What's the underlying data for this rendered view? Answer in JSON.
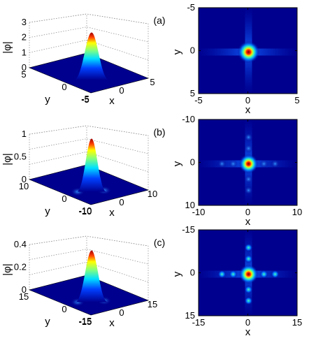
{
  "panels": [
    {
      "label": "(a)",
      "zlabel": "|φ|",
      "xlabel": "x",
      "ylabel": "y",
      "zticks": [
        "3",
        "2",
        "1",
        "0"
      ],
      "xticks3d": [
        "-5",
        "0",
        "5"
      ],
      "yticks3d": [
        "5",
        "0",
        "-5"
      ],
      "xticks": [
        "-5",
        "0",
        "5"
      ],
      "yticks": [
        "-5",
        "0",
        "5"
      ]
    },
    {
      "label": "(b)",
      "zlabel": "|φ|",
      "xlabel": "x",
      "ylabel": "y",
      "zticks": [
        "1",
        "0.5",
        "0"
      ],
      "xticks3d": [
        "-10",
        "0",
        "10"
      ],
      "yticks3d": [
        "10",
        "0",
        "-10"
      ],
      "xticks": [
        "-10",
        "0",
        "10"
      ],
      "yticks": [
        "-10",
        "0",
        "10"
      ]
    },
    {
      "label": "(c)",
      "zlabel": "|φ|",
      "xlabel": "x",
      "ylabel": "y",
      "zticks": [
        "0.4",
        "0.2",
        "0"
      ],
      "xticks3d": [
        "-15",
        "0",
        "15"
      ],
      "yticks3d": [
        "15",
        "0",
        "-15"
      ],
      "xticks": [
        "-15",
        "0",
        "15"
      ],
      "yticks": [
        "-15",
        "0",
        "15"
      ]
    }
  ],
  "chart_data": [
    {
      "type": "heatmap",
      "panel": "(a)",
      "view": "3d-surface",
      "zlabel": "|φ|",
      "xlabel": "x",
      "ylabel": "y",
      "xlim": [
        -5,
        5
      ],
      "ylim": [
        -5,
        5
      ],
      "zlim": [
        0,
        3
      ],
      "peak": 2.5,
      "colormap": "jet"
    },
    {
      "type": "heatmap",
      "panel": "(a)",
      "view": "2d-map",
      "xlabel": "x",
      "ylabel": "y",
      "xlim": [
        -5,
        5
      ],
      "ylim": [
        5,
        -5
      ],
      "colormap": "jet"
    },
    {
      "type": "heatmap",
      "panel": "(b)",
      "view": "3d-surface",
      "zlabel": "|φ|",
      "xlabel": "x",
      "ylabel": "y",
      "xlim": [
        -10,
        10
      ],
      "ylim": [
        -10,
        10
      ],
      "zlim": [
        0,
        1
      ],
      "peak": 0.85,
      "colormap": "jet"
    },
    {
      "type": "heatmap",
      "panel": "(b)",
      "view": "2d-map",
      "xlabel": "x",
      "ylabel": "y",
      "xlim": [
        -10,
        10
      ],
      "ylim": [
        10,
        -10
      ],
      "colormap": "jet"
    },
    {
      "type": "heatmap",
      "panel": "(c)",
      "view": "3d-surface",
      "zlabel": "|φ|",
      "xlabel": "x",
      "ylabel": "y",
      "xlim": [
        -15,
        15
      ],
      "ylim": [
        -15,
        15
      ],
      "zlim": [
        0,
        0.4
      ],
      "peak": 0.44,
      "colormap": "jet"
    },
    {
      "type": "heatmap",
      "panel": "(c)",
      "view": "2d-map",
      "xlabel": "x",
      "ylabel": "y",
      "xlim": [
        -15,
        15
      ],
      "ylim": [
        15,
        -15
      ],
      "colormap": "jet"
    }
  ],
  "colors": {
    "background": "#00008f",
    "peak": "#8b0000",
    "axis": "#000000",
    "grid": "#888888"
  }
}
